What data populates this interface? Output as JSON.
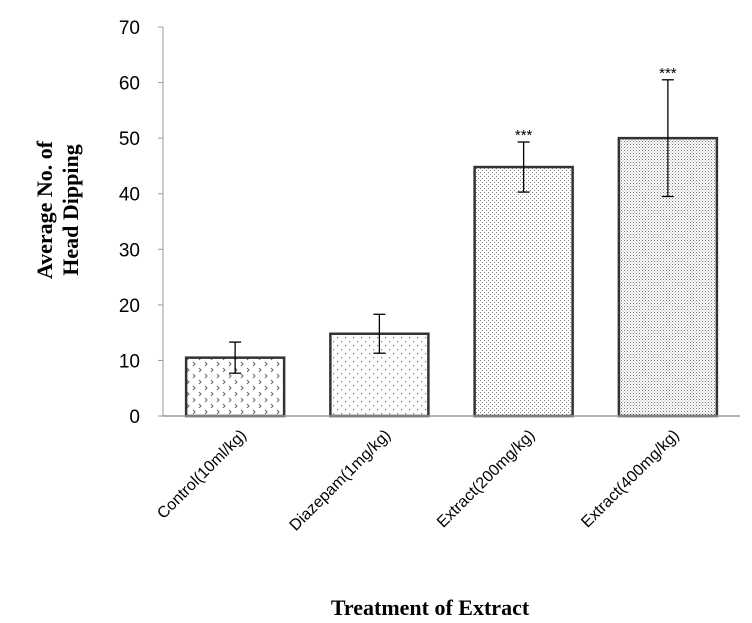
{
  "chart_data": {
    "type": "bar",
    "title": "",
    "xlabel": "Treatment of Extract",
    "ylabel_lines": [
      "Average No. of",
      "Head Dipping"
    ],
    "ylim": [
      0,
      70
    ],
    "yticks": [
      0,
      10,
      20,
      30,
      40,
      50,
      60,
      70
    ],
    "categories": [
      "Control(10ml/kg)",
      "Diazepam(1mg/kg)",
      "Extract(200mg/kg)",
      "Extract(400mg/kg)"
    ],
    "values": [
      10.5,
      14.8,
      44.8,
      50
    ],
    "errors": [
      2.8,
      3.5,
      4.5,
      10.5
    ],
    "annotations": [
      "",
      "",
      "***",
      "***"
    ],
    "grid": false,
    "legend": "none"
  }
}
